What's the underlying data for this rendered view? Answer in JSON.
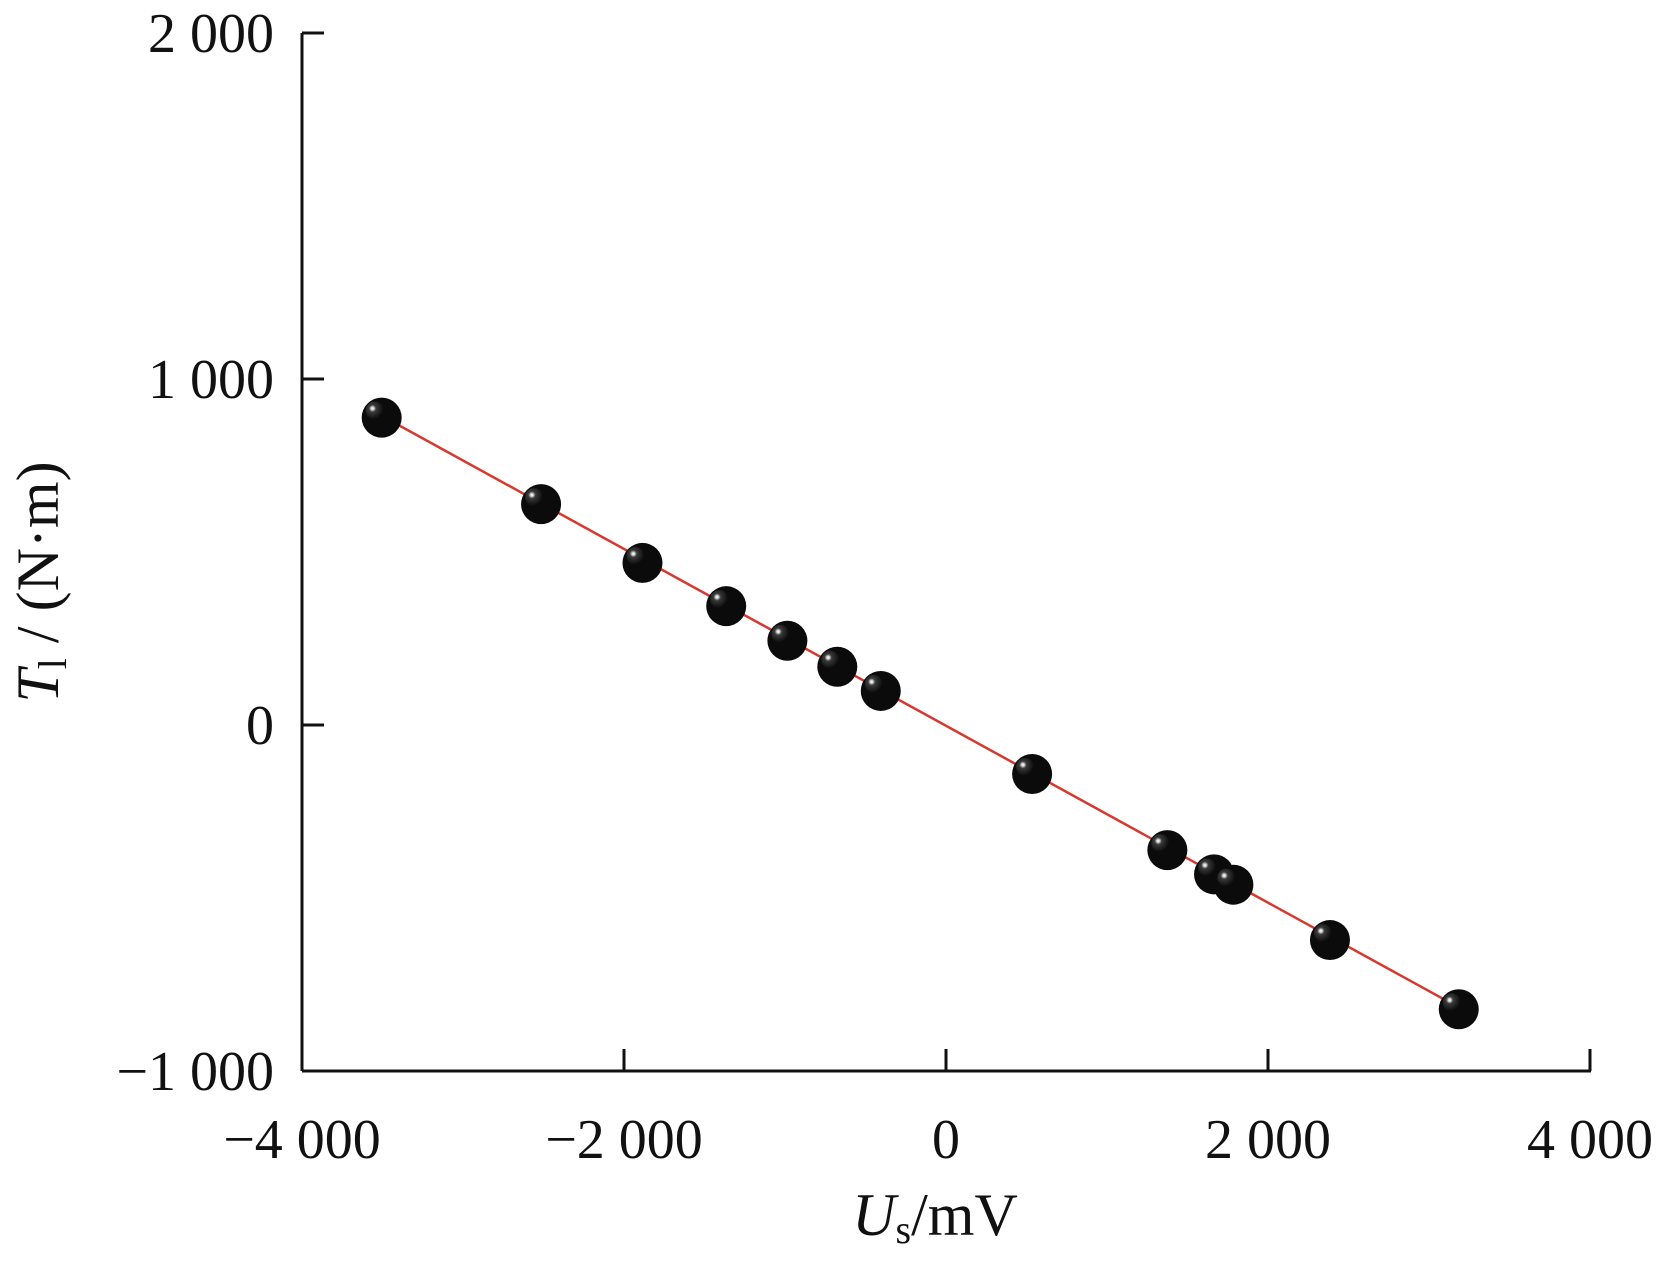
{
  "chart_data": {
    "type": "scatter",
    "xlim": [
      -4000,
      4000
    ],
    "ylim": [
      -1000,
      2000
    ],
    "x_ticks": [
      {
        "value": -4000,
        "label": "−4 000"
      },
      {
        "value": -2000,
        "label": "−2 000"
      },
      {
        "value": 0,
        "label": "0"
      },
      {
        "value": 2000,
        "label": "2 000"
      },
      {
        "value": 4000,
        "label": "4 000"
      }
    ],
    "y_ticks": [
      {
        "value": -1000,
        "label": "−1 000"
      },
      {
        "value": 0,
        "label": "0"
      },
      {
        "value": 1000,
        "label": "1 000"
      },
      {
        "value": 2000,
        "label": "2 000"
      }
    ],
    "xlabel": {
      "main": "U",
      "sub": "s",
      "rest": "/mV"
    },
    "ylabel": {
      "main": "T",
      "sub": "l",
      "rest": " / (N·m)"
    },
    "grid": false,
    "colors": {
      "points": "#111111",
      "fit_line": "#d8382d",
      "axes": "#111111"
    },
    "points": [
      {
        "x": -3530,
        "y": 900
      },
      {
        "x": -2540,
        "y": 650
      },
      {
        "x": -1910,
        "y": 480
      },
      {
        "x": -1390,
        "y": 355
      },
      {
        "x": -1010,
        "y": 255
      },
      {
        "x": -700,
        "y": 180
      },
      {
        "x": -430,
        "y": 110
      },
      {
        "x": 510,
        "y": -130
      },
      {
        "x": 1350,
        "y": -350
      },
      {
        "x": 1640,
        "y": -420
      },
      {
        "x": 1760,
        "y": -450
      },
      {
        "x": 2360,
        "y": -610
      },
      {
        "x": 3160,
        "y": -810
      }
    ],
    "fit_line": {
      "x": [
        -3550,
        3180
      ],
      "y": [
        905,
        -815
      ]
    }
  }
}
